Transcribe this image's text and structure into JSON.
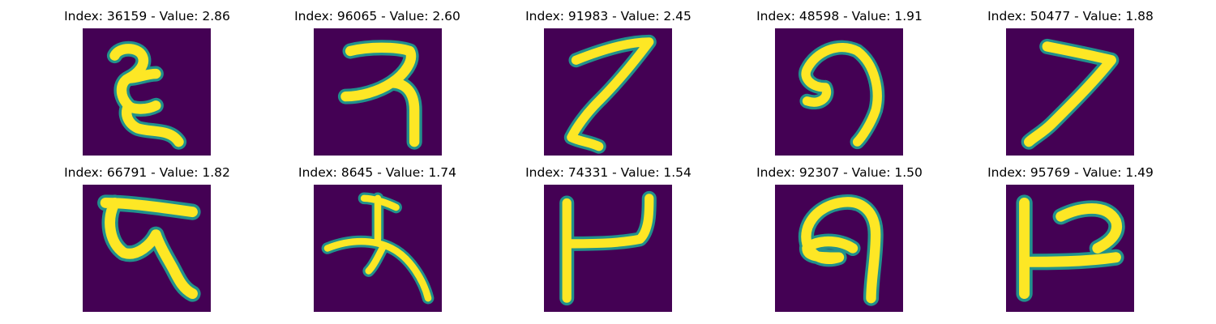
{
  "figure": {
    "panels": [
      {
        "index": "36159",
        "value": "2.86",
        "title": "Index: 36159 - Value: 2.86",
        "image": "handwritten-glyph"
      },
      {
        "index": "96065",
        "value": "2.60",
        "title": "Index: 96065 - Value: 2.60",
        "image": "handwritten-glyph"
      },
      {
        "index": "91983",
        "value": "2.45",
        "title": "Index: 91983 - Value: 2.45",
        "image": "handwritten-glyph"
      },
      {
        "index": "48598",
        "value": "1.91",
        "title": "Index: 48598 - Value: 1.91",
        "image": "handwritten-glyph"
      },
      {
        "index": "50477",
        "value": "1.88",
        "title": "Index: 50477 - Value: 1.88",
        "image": "handwritten-glyph"
      },
      {
        "index": "66791",
        "value": "1.82",
        "title": "Index: 66791 - Value: 1.82",
        "image": "handwritten-glyph"
      },
      {
        "index": "8645",
        "value": "1.74",
        "title": "Index: 8645 - Value: 1.74",
        "image": "handwritten-glyph"
      },
      {
        "index": "74331",
        "value": "1.54",
        "title": "Index: 74331 - Value: 1.54",
        "image": "handwritten-glyph"
      },
      {
        "index": "92307",
        "value": "1.50",
        "title": "Index: 92307 - Value: 1.50",
        "image": "handwritten-glyph"
      },
      {
        "index": "95769",
        "value": "1.49",
        "title": "Index: 95769 - Value: 1.49",
        "image": "handwritten-glyph"
      }
    ],
    "colors": {
      "background": "#440154",
      "stroke_core": "#fde725",
      "stroke_edge": "#21918c"
    }
  }
}
